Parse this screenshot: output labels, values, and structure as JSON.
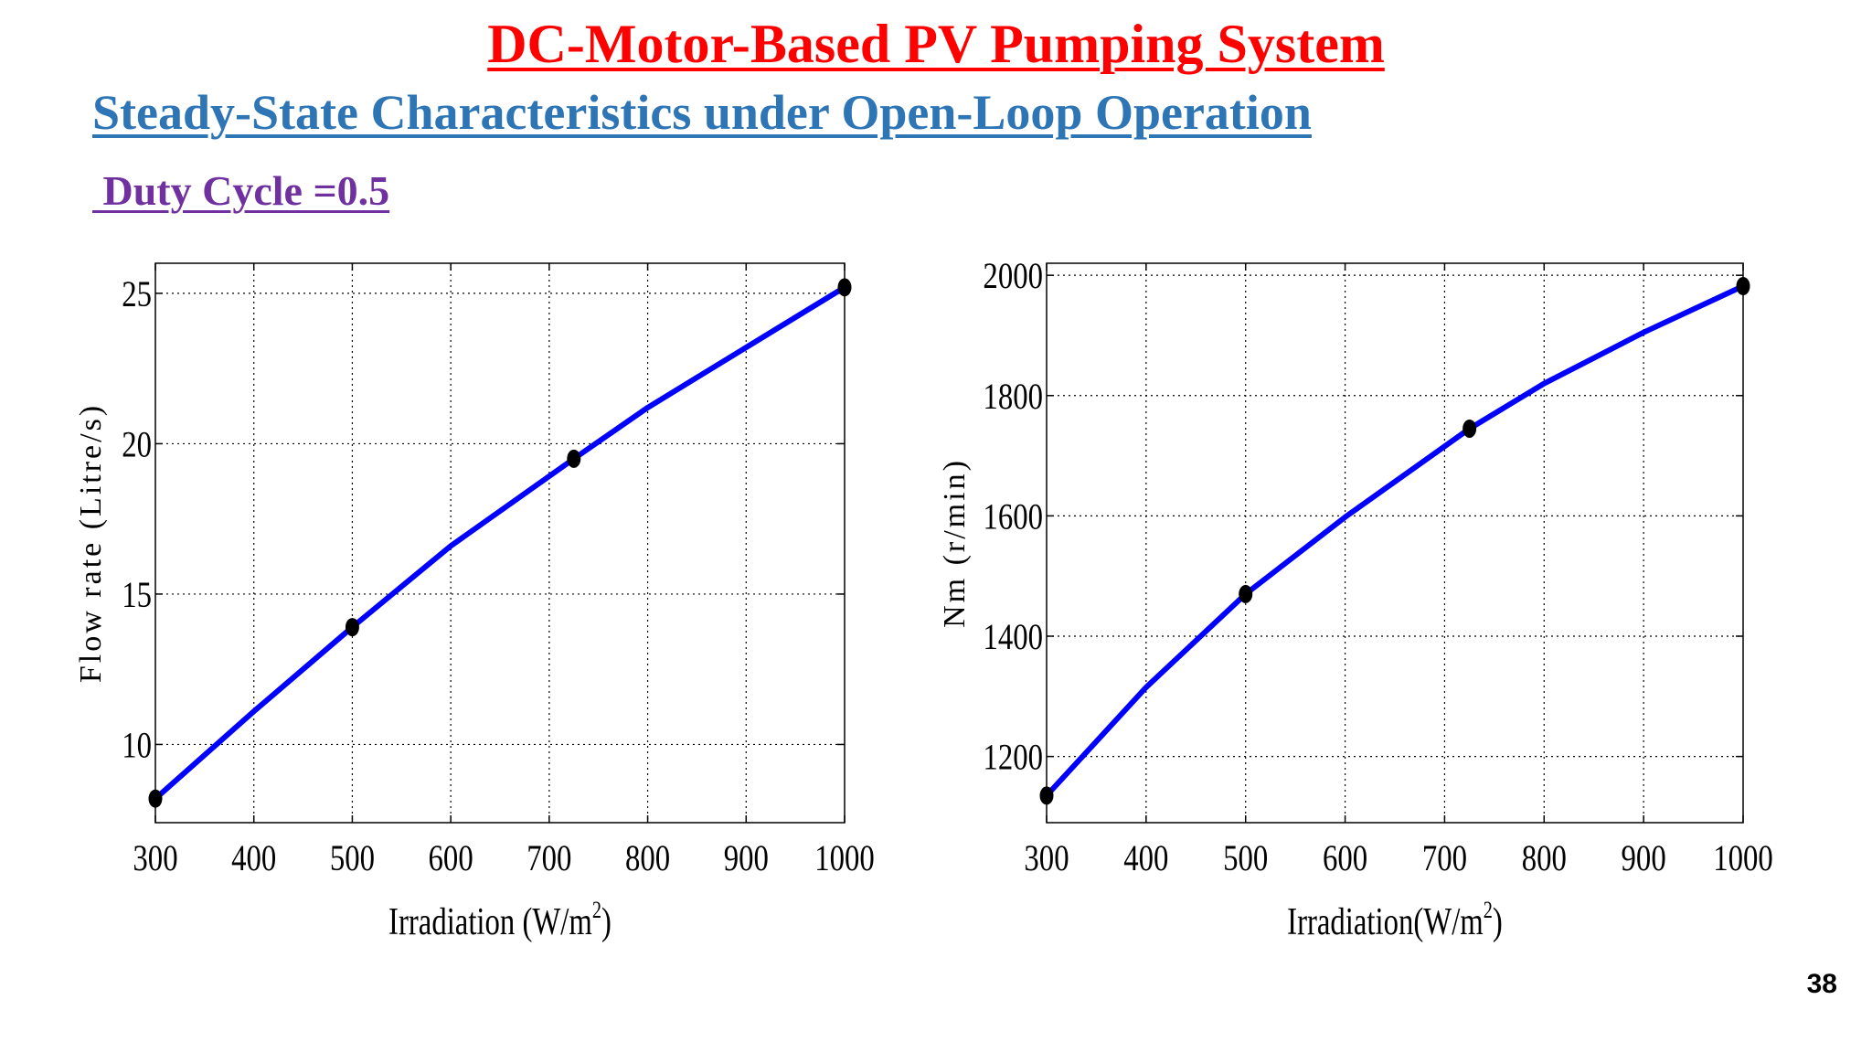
{
  "slide": {
    "title": "DC-Motor-Based PV Pumping System",
    "subtitle": "Steady-State Characteristics under Open-Loop Operation",
    "duty_cycle": " Duty Cycle =0.5",
    "page_number": "38"
  },
  "colors": {
    "title": "#ff0000",
    "subtitle": "#2e75b6",
    "duty": "#7030a0",
    "curve": "#0000ff",
    "marker": "#000000"
  },
  "chart_data": [
    {
      "type": "line",
      "xlabel": "Irradiation (W/m",
      "xlabel_sup": "2",
      "xlabel_end": ")",
      "ylabel": "Flow rate (Litre/s)",
      "xlim": [
        300,
        1000
      ],
      "ylim": [
        7.4,
        26
      ],
      "xticks": [
        300,
        400,
        500,
        600,
        700,
        800,
        900,
        1000
      ],
      "yticks": [
        10,
        15,
        20,
        25
      ],
      "grid": true,
      "series": [
        {
          "x": [
            300,
            400,
            500,
            600,
            725,
            800,
            900,
            1000
          ],
          "y": [
            8.2,
            11.1,
            13.9,
            16.6,
            19.5,
            21.2,
            23.2,
            25.2
          ]
        }
      ],
      "markers": {
        "x": [
          300,
          500,
          725,
          1000
        ],
        "y": [
          8.2,
          13.9,
          19.5,
          25.2
        ]
      }
    },
    {
      "type": "line",
      "xlabel": "Irradiation(W/m",
      "xlabel_sup": "2",
      "xlabel_end": ")",
      "ylabel": "Nm (r/min)",
      "xlim": [
        300,
        1000
      ],
      "ylim": [
        1090,
        2020
      ],
      "xticks": [
        300,
        400,
        500,
        600,
        700,
        800,
        900,
        1000
      ],
      "yticks": [
        1200,
        1400,
        1600,
        1800,
        2000
      ],
      "grid": true,
      "series": [
        {
          "x": [
            300,
            400,
            500,
            600,
            725,
            800,
            900,
            1000
          ],
          "y": [
            1135,
            1315,
            1470,
            1598,
            1745,
            1820,
            1905,
            1982
          ]
        }
      ],
      "markers": {
        "x": [
          300,
          500,
          725,
          1000
        ],
        "y": [
          1135,
          1470,
          1745,
          1982
        ]
      }
    }
  ]
}
